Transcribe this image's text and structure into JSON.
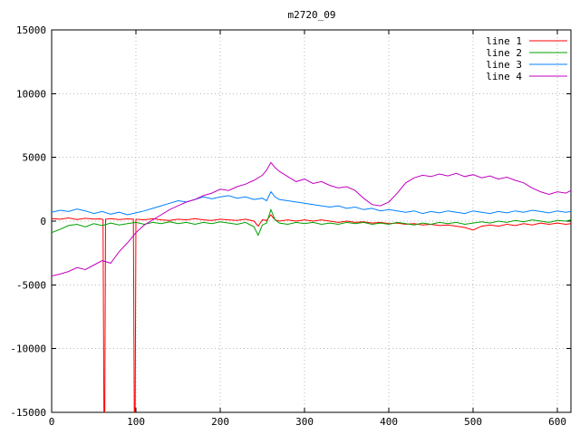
{
  "chart_data": {
    "type": "line",
    "title": "m2720_09",
    "xlabel": "",
    "ylabel": "",
    "xlim": [
      0,
      616
    ],
    "ylim": [
      -15000,
      15000
    ],
    "xticks": [
      0,
      100,
      200,
      300,
      400,
      500,
      600
    ],
    "yticks": [
      -15000,
      -10000,
      -5000,
      0,
      5000,
      10000,
      15000
    ],
    "grid": true,
    "legend_position": "top-right",
    "series": [
      {
        "name": "line 1",
        "color": "#ff0000",
        "points": [
          [
            0,
            200
          ],
          [
            10,
            150
          ],
          [
            20,
            250
          ],
          [
            30,
            120
          ],
          [
            40,
            220
          ],
          [
            50,
            160
          ],
          [
            58,
            180
          ],
          [
            61,
            120
          ],
          [
            62,
            -15500
          ],
          [
            63,
            -15500
          ],
          [
            64,
            150
          ],
          [
            70,
            200
          ],
          [
            80,
            120
          ],
          [
            90,
            180
          ],
          [
            97,
            150
          ],
          [
            98,
            -15500
          ],
          [
            99,
            -15500
          ],
          [
            100,
            150
          ],
          [
            110,
            100
          ],
          [
            120,
            200
          ],
          [
            130,
            100
          ],
          [
            140,
            50
          ],
          [
            150,
            150
          ],
          [
            160,
            100
          ],
          [
            170,
            200
          ],
          [
            180,
            100
          ],
          [
            190,
            50
          ],
          [
            200,
            150
          ],
          [
            210,
            100
          ],
          [
            220,
            50
          ],
          [
            230,
            150
          ],
          [
            240,
            0
          ],
          [
            245,
            -400
          ],
          [
            250,
            100
          ],
          [
            255,
            50
          ],
          [
            260,
            500
          ],
          [
            265,
            100
          ],
          [
            270,
            0
          ],
          [
            280,
            100
          ],
          [
            290,
            0
          ],
          [
            300,
            100
          ],
          [
            310,
            0
          ],
          [
            320,
            100
          ],
          [
            330,
            0
          ],
          [
            340,
            -100
          ],
          [
            350,
            0
          ],
          [
            360,
            -100
          ],
          [
            370,
            -50
          ],
          [
            380,
            -150
          ],
          [
            390,
            -100
          ],
          [
            400,
            -200
          ],
          [
            410,
            -150
          ],
          [
            420,
            -250
          ],
          [
            430,
            -200
          ],
          [
            440,
            -300
          ],
          [
            450,
            -250
          ],
          [
            460,
            -350
          ],
          [
            470,
            -300
          ],
          [
            480,
            -400
          ],
          [
            490,
            -500
          ],
          [
            500,
            -700
          ],
          [
            510,
            -400
          ],
          [
            520,
            -300
          ],
          [
            530,
            -400
          ],
          [
            540,
            -250
          ],
          [
            550,
            -350
          ],
          [
            560,
            -200
          ],
          [
            570,
            -300
          ],
          [
            580,
            -150
          ],
          [
            590,
            -250
          ],
          [
            600,
            -150
          ],
          [
            610,
            -250
          ],
          [
            616,
            -200
          ]
        ]
      },
      {
        "name": "line 2",
        "color": "#00a000",
        "points": [
          [
            0,
            -900
          ],
          [
            10,
            -650
          ],
          [
            20,
            -350
          ],
          [
            30,
            -250
          ],
          [
            40,
            -450
          ],
          [
            50,
            -200
          ],
          [
            60,
            -350
          ],
          [
            70,
            -150
          ],
          [
            80,
            -300
          ],
          [
            90,
            -200
          ],
          [
            100,
            -100
          ],
          [
            110,
            -250
          ],
          [
            120,
            -100
          ],
          [
            130,
            -200
          ],
          [
            140,
            -50
          ],
          [
            150,
            -200
          ],
          [
            160,
            -100
          ],
          [
            170,
            -250
          ],
          [
            180,
            -100
          ],
          [
            190,
            -200
          ],
          [
            200,
            -50
          ],
          [
            210,
            -150
          ],
          [
            220,
            -250
          ],
          [
            230,
            -100
          ],
          [
            240,
            -450
          ],
          [
            245,
            -1100
          ],
          [
            250,
            -300
          ],
          [
            255,
            -150
          ],
          [
            260,
            900
          ],
          [
            265,
            100
          ],
          [
            270,
            -150
          ],
          [
            280,
            -250
          ],
          [
            290,
            -100
          ],
          [
            300,
            -200
          ],
          [
            310,
            -100
          ],
          [
            320,
            -250
          ],
          [
            330,
            -150
          ],
          [
            340,
            -250
          ],
          [
            350,
            -100
          ],
          [
            360,
            -200
          ],
          [
            370,
            -100
          ],
          [
            380,
            -250
          ],
          [
            390,
            -150
          ],
          [
            400,
            -250
          ],
          [
            410,
            -100
          ],
          [
            420,
            -200
          ],
          [
            430,
            -300
          ],
          [
            440,
            -150
          ],
          [
            450,
            -250
          ],
          [
            460,
            -100
          ],
          [
            470,
            -200
          ],
          [
            480,
            -100
          ],
          [
            490,
            -250
          ],
          [
            500,
            -150
          ],
          [
            510,
            -50
          ],
          [
            520,
            -150
          ],
          [
            530,
            0
          ],
          [
            540,
            -100
          ],
          [
            550,
            50
          ],
          [
            560,
            -50
          ],
          [
            570,
            100
          ],
          [
            580,
            0
          ],
          [
            590,
            -100
          ],
          [
            600,
            50
          ],
          [
            610,
            0
          ],
          [
            616,
            100
          ]
        ]
      },
      {
        "name": "line 3",
        "color": "#0080ff",
        "points": [
          [
            0,
            700
          ],
          [
            10,
            850
          ],
          [
            20,
            750
          ],
          [
            30,
            950
          ],
          [
            40,
            800
          ],
          [
            50,
            600
          ],
          [
            60,
            750
          ],
          [
            70,
            550
          ],
          [
            80,
            700
          ],
          [
            90,
            500
          ],
          [
            100,
            650
          ],
          [
            110,
            800
          ],
          [
            120,
            1000
          ],
          [
            130,
            1200
          ],
          [
            140,
            1400
          ],
          [
            150,
            1600
          ],
          [
            160,
            1500
          ],
          [
            170,
            1700
          ],
          [
            180,
            1900
          ],
          [
            190,
            1750
          ],
          [
            200,
            1900
          ],
          [
            210,
            2000
          ],
          [
            220,
            1800
          ],
          [
            230,
            1900
          ],
          [
            240,
            1700
          ],
          [
            250,
            1800
          ],
          [
            255,
            1600
          ],
          [
            260,
            2300
          ],
          [
            265,
            1900
          ],
          [
            270,
            1700
          ],
          [
            280,
            1600
          ],
          [
            290,
            1500
          ],
          [
            300,
            1400
          ],
          [
            310,
            1300
          ],
          [
            320,
            1200
          ],
          [
            330,
            1100
          ],
          [
            340,
            1200
          ],
          [
            350,
            1000
          ],
          [
            360,
            1100
          ],
          [
            370,
            900
          ],
          [
            380,
            1000
          ],
          [
            390,
            800
          ],
          [
            400,
            900
          ],
          [
            410,
            800
          ],
          [
            420,
            700
          ],
          [
            430,
            800
          ],
          [
            440,
            600
          ],
          [
            450,
            750
          ],
          [
            460,
            650
          ],
          [
            470,
            800
          ],
          [
            480,
            700
          ],
          [
            490,
            600
          ],
          [
            500,
            800
          ],
          [
            510,
            700
          ],
          [
            520,
            600
          ],
          [
            530,
            750
          ],
          [
            540,
            650
          ],
          [
            550,
            800
          ],
          [
            560,
            700
          ],
          [
            570,
            850
          ],
          [
            580,
            750
          ],
          [
            590,
            650
          ],
          [
            600,
            800
          ],
          [
            610,
            700
          ],
          [
            616,
            750
          ]
        ]
      },
      {
        "name": "line 4",
        "color": "#c000c0",
        "points": [
          [
            0,
            -4300
          ],
          [
            10,
            -4150
          ],
          [
            20,
            -3950
          ],
          [
            30,
            -3650
          ],
          [
            40,
            -3800
          ],
          [
            50,
            -3450
          ],
          [
            60,
            -3100
          ],
          [
            70,
            -3300
          ],
          [
            80,
            -2400
          ],
          [
            90,
            -1700
          ],
          [
            100,
            -900
          ],
          [
            110,
            -300
          ],
          [
            120,
            100
          ],
          [
            130,
            500
          ],
          [
            140,
            900
          ],
          [
            150,
            1200
          ],
          [
            160,
            1500
          ],
          [
            170,
            1700
          ],
          [
            180,
            2000
          ],
          [
            190,
            2200
          ],
          [
            200,
            2500
          ],
          [
            210,
            2400
          ],
          [
            220,
            2700
          ],
          [
            230,
            2900
          ],
          [
            240,
            3200
          ],
          [
            250,
            3600
          ],
          [
            255,
            4000
          ],
          [
            260,
            4600
          ],
          [
            265,
            4200
          ],
          [
            270,
            3900
          ],
          [
            280,
            3500
          ],
          [
            290,
            3100
          ],
          [
            300,
            3300
          ],
          [
            310,
            2950
          ],
          [
            320,
            3100
          ],
          [
            330,
            2800
          ],
          [
            340,
            2600
          ],
          [
            350,
            2700
          ],
          [
            360,
            2400
          ],
          [
            370,
            1800
          ],
          [
            380,
            1300
          ],
          [
            390,
            1200
          ],
          [
            400,
            1500
          ],
          [
            410,
            2200
          ],
          [
            420,
            3000
          ],
          [
            430,
            3400
          ],
          [
            440,
            3600
          ],
          [
            450,
            3500
          ],
          [
            460,
            3700
          ],
          [
            470,
            3550
          ],
          [
            480,
            3750
          ],
          [
            490,
            3500
          ],
          [
            500,
            3650
          ],
          [
            510,
            3400
          ],
          [
            520,
            3550
          ],
          [
            530,
            3300
          ],
          [
            540,
            3450
          ],
          [
            550,
            3200
          ],
          [
            560,
            3000
          ],
          [
            570,
            2600
          ],
          [
            580,
            2300
          ],
          [
            590,
            2100
          ],
          [
            600,
            2300
          ],
          [
            610,
            2200
          ],
          [
            616,
            2400
          ]
        ]
      }
    ]
  }
}
